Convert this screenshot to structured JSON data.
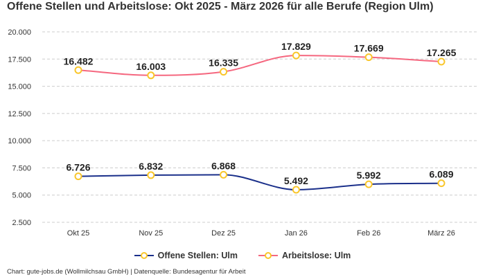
{
  "chart_data": {
    "type": "line",
    "title": "Offene Stellen und Arbeitslose: Okt 2025 - März 2026 für alle Berufe (Region Ulm)",
    "categories": [
      "Okt 25",
      "Nov 25",
      "Dez 25",
      "Jan 26",
      "Feb 26",
      "März 26"
    ],
    "y_ticks": [
      "2.500",
      "5.000",
      "7.500",
      "10.000",
      "12.500",
      "15.000",
      "17.500",
      "20.000"
    ],
    "ylim": [
      2500,
      20000
    ],
    "grid": true,
    "legend_position": "bottom",
    "series": [
      {
        "name": "Offene Stellen: Ulm",
        "values": [
          6726,
          6832,
          6868,
          5492,
          5992,
          6089
        ],
        "labels": [
          "6.726",
          "6.832",
          "6.868",
          "5.492",
          "5.992",
          "6.089"
        ],
        "color": "#1a2f8a"
      },
      {
        "name": "Arbeitslose: Ulm",
        "values": [
          16482,
          16003,
          16335,
          17829,
          17669,
          17265
        ],
        "labels": [
          "16.482",
          "16.003",
          "16.335",
          "17.829",
          "17.669",
          "17.265"
        ],
        "color": "#f5677f"
      }
    ],
    "marker_color": "#f9c62a"
  },
  "credit": "Chart: gute-jobs.de (Wollmilchsau GmbH) | Datenquelle: Bundesagentur für Arbeit"
}
